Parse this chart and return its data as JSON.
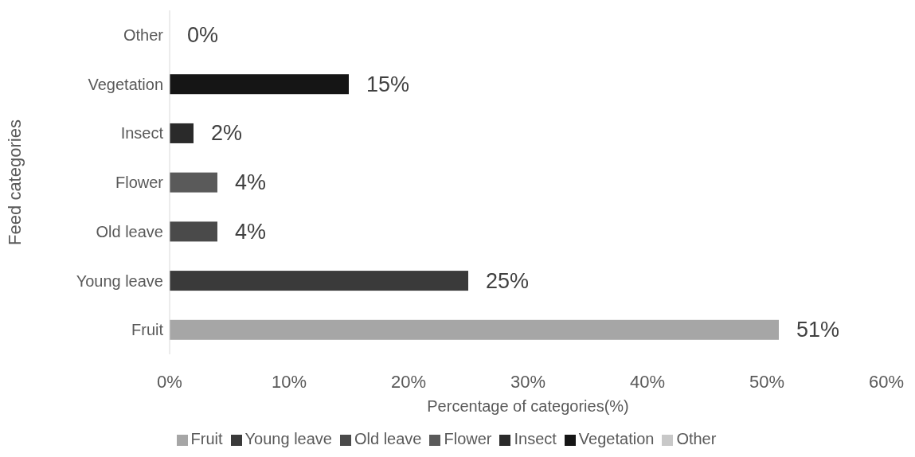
{
  "chart_data": {
    "type": "bar",
    "orientation": "horizontal",
    "stacked": true,
    "xlabel": "Percentage of categories(%)",
    "ylabel": "Feed categories",
    "categories": [
      "Other",
      "Vegetation",
      "Insect",
      "Flower",
      "Old leave",
      "Young leave",
      "Fruit"
    ],
    "series": [
      {
        "name": "Fruit",
        "color": "#a6a6a6",
        "values": [
          null,
          null,
          null,
          null,
          null,
          null,
          51
        ],
        "value_labels": [
          null,
          null,
          null,
          null,
          null,
          null,
          "51%"
        ]
      },
      {
        "name": "Young leave",
        "color": "#3a3a3a",
        "values": [
          null,
          null,
          null,
          null,
          null,
          25,
          null
        ],
        "value_labels": [
          null,
          null,
          null,
          null,
          null,
          "25%",
          null
        ]
      },
      {
        "name": "Old leave",
        "color": "#4a4a4a",
        "values": [
          null,
          null,
          null,
          null,
          4,
          null,
          null
        ],
        "value_labels": [
          null,
          null,
          null,
          null,
          "4%",
          null,
          null
        ]
      },
      {
        "name": "Flower",
        "color": "#5a5a5a",
        "values": [
          null,
          null,
          null,
          4,
          null,
          null,
          null
        ],
        "value_labels": [
          null,
          null,
          null,
          "4%",
          null,
          null,
          null
        ]
      },
      {
        "name": "Insect",
        "color": "#2a2a2a",
        "values": [
          null,
          null,
          2,
          null,
          null,
          null,
          null
        ],
        "value_labels": [
          null,
          null,
          "2%",
          null,
          null,
          null,
          null
        ]
      },
      {
        "name": "Vegetation",
        "color": "#151515",
        "values": [
          null,
          15,
          null,
          null,
          null,
          null,
          null
        ],
        "value_labels": [
          null,
          "15%",
          null,
          null,
          null,
          null,
          null
        ]
      },
      {
        "name": "Other",
        "color": "#c8c8c8",
        "values": [
          0,
          null,
          null,
          null,
          null,
          null,
          null
        ],
        "value_labels": [
          "0%",
          null,
          null,
          null,
          null,
          null,
          null
        ]
      }
    ],
    "xlim": [
      0,
      60
    ],
    "xticks": [
      {
        "value": 0,
        "label": "0%"
      },
      {
        "value": 10,
        "label": "10%"
      },
      {
        "value": 20,
        "label": "20%"
      },
      {
        "value": 30,
        "label": "30%"
      },
      {
        "value": 40,
        "label": "40%"
      },
      {
        "value": 50,
        "label": "50%"
      },
      {
        "value": 60,
        "label": "60%"
      }
    ],
    "grid": false,
    "legend": "bottom"
  }
}
